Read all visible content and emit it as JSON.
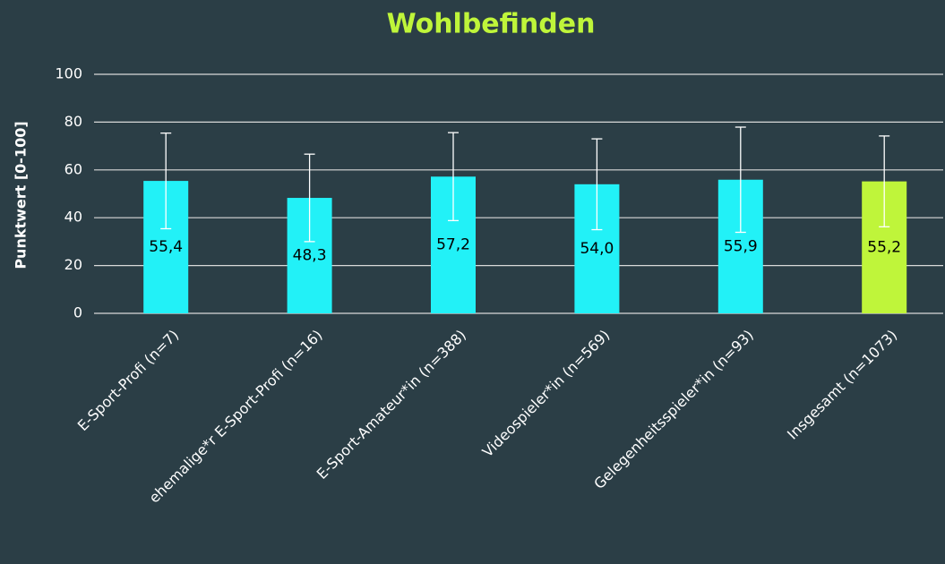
{
  "chart_data": {
    "type": "bar",
    "title": "Wohlbefinden",
    "y_label": "Punktwert [0-100]",
    "categories": [
      "E-Sport-Profi (n=7)",
      "ehemalige*r E-Sport-Profi (n=16)",
      "E-Sport-Amateur*in (n=388)",
      "Videospieler*in (n=569)",
      "Gelegenheitsspieler*in (n=93)",
      "Insgesamt (n=1073)"
    ],
    "values": [
      55.4,
      48.3,
      57.2,
      54.0,
      55.9,
      55.2
    ],
    "value_labels": [
      "55,4",
      "48,3",
      "57,2",
      "54,0",
      "55,9",
      "55,2"
    ],
    "errors": [
      20,
      18.3,
      18.4,
      19,
      22,
      19
    ],
    "colors": [
      "#22f1f7",
      "#22f1f7",
      "#22f1f7",
      "#22f1f7",
      "#22f1f7",
      "#bff53a"
    ],
    "ylim": [
      0,
      100
    ],
    "yticks": [
      0,
      20,
      40,
      60,
      80,
      100
    ],
    "grid": true
  }
}
